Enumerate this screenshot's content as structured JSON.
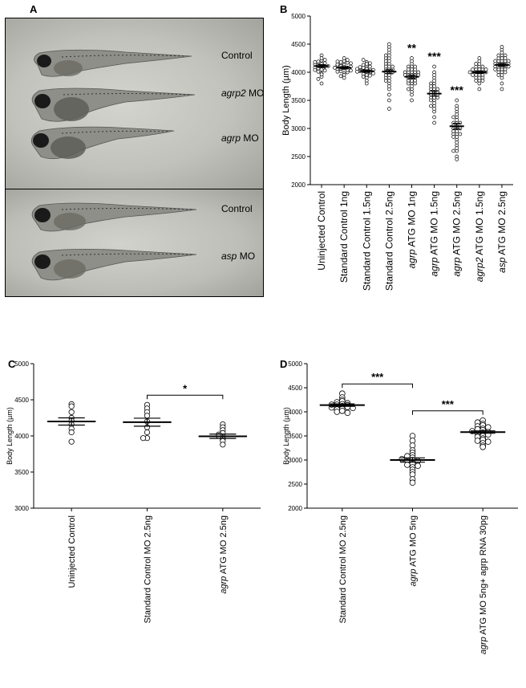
{
  "panel_labels": {
    "A": "A",
    "B": "B",
    "C": "C",
    "D": "D"
  },
  "photo": {
    "labels_top": [
      {
        "italic": "",
        "text": "Control"
      },
      {
        "italic": "agrp2",
        "text": " MO"
      },
      {
        "italic": "agrp",
        "text": " MO"
      }
    ],
    "labels_bottom": [
      {
        "italic": "",
        "text": "Control"
      },
      {
        "italic": "asp",
        "text": " MO"
      }
    ]
  },
  "chart_data": [
    {
      "panel": "B",
      "type": "scatter",
      "ylabel": "Body Length (µm)",
      "ylim": [
        2000,
        5000
      ],
      "yticks": [
        2000,
        2500,
        3000,
        3500,
        4000,
        4500,
        5000
      ],
      "categories": [
        {
          "italic": "",
          "text": "Uninjected Control"
        },
        {
          "italic": "",
          "text": "Standard Control 1ng"
        },
        {
          "italic": "",
          "text": "Standard Control 1.5ng"
        },
        {
          "italic": "",
          "text": "Standard Control 2.5ng"
        },
        {
          "italic": "agrp",
          "text": " ATG MO 1ng"
        },
        {
          "italic": "agrp",
          "text": " ATG MO 1.5ng"
        },
        {
          "italic": "agrp",
          "text": " ATG MO 2.5ng"
        },
        {
          "italic": "agrp2",
          "text": " ATG MO 1.5ng"
        },
        {
          "italic": "asp",
          "text": " ATG MO 2.5ng"
        }
      ],
      "means": [
        4110,
        4080,
        4020,
        4010,
        3920,
        3620,
        3040,
        4000,
        4130
      ],
      "sem": [
        25,
        20,
        22,
        35,
        30,
        45,
        50,
        20,
        25
      ],
      "significance": [
        "",
        "",
        "",
        "",
        "**",
        "***",
        "***",
        "",
        ""
      ],
      "values": [
        [
          4120,
          4210,
          4050,
          3980,
          4150,
          4080,
          4300,
          3920,
          4010,
          4190,
          4070,
          4130,
          3880,
          4250,
          4100,
          4030,
          4160,
          3960,
          4220,
          4090,
          4140,
          3800,
          4040,
          4180,
          4110
        ],
        [
          4130,
          4070,
          4200,
          3980,
          4020,
          4150,
          4090,
          4250,
          3950,
          4110,
          4060,
          4180,
          4000,
          4080,
          4120,
          3900,
          4170,
          4040,
          4100,
          4220,
          4050,
          3930,
          4140,
          4010,
          4190,
          4030,
          4080,
          4160
        ],
        [
          4060,
          3990,
          4120,
          3950,
          4030,
          4180,
          3900,
          4080,
          4010,
          4150,
          3970,
          4050,
          4220,
          3850,
          4100,
          4000,
          4070,
          3940,
          4130,
          4020,
          3980,
          4090,
          3800,
          4040,
          4160,
          3920,
          4060,
          4010
        ],
        [
          4050,
          4250,
          3900,
          4150,
          3800,
          4100,
          4350,
          3700,
          4000,
          4200,
          3950,
          4450,
          3600,
          4050,
          4300,
          3850,
          4150,
          4000,
          3500,
          4100,
          4250,
          3900,
          4050,
          4400,
          3750,
          4200,
          3950,
          4100,
          3350,
          4000,
          4300,
          4500,
          3850
        ],
        [
          4000,
          3800,
          4150,
          3700,
          3950,
          4100,
          3850,
          4050,
          3650,
          3900,
          4200,
          3750,
          4000,
          3600,
          3950,
          4100,
          3850,
          4000,
          3500,
          3900,
          4050,
          3800,
          4250,
          3950,
          3700,
          3900,
          4050,
          3850,
          4000,
          3950,
          4100,
          3800,
          3950,
          4000
        ],
        [
          3800,
          3500,
          4000,
          3300,
          3700,
          3900,
          3600,
          3400,
          3750,
          3550,
          3850,
          3200,
          3650,
          4100,
          3450,
          3600,
          3700,
          3350,
          3800,
          3550,
          3650,
          3950,
          3100,
          3600,
          3500,
          3750,
          3650,
          3400,
          3700,
          3550
        ],
        [
          3400,
          2800,
          3200,
          2600,
          3100,
          3500,
          2900,
          3000,
          2700,
          3300,
          2500,
          3050,
          2950,
          3150,
          2850,
          3250,
          2650,
          3000,
          2450,
          3100,
          2900,
          3350,
          2750,
          3050,
          2950,
          2850,
          3200,
          3000,
          2600,
          3100,
          2900
        ],
        [
          3950,
          4100,
          4050,
          3850,
          4000,
          4150,
          3900,
          4050,
          4000,
          4200,
          3800,
          3950,
          4100,
          4050,
          3900,
          4000,
          4250,
          3850,
          4000,
          4100,
          3950,
          4050,
          3900,
          3700,
          4000,
          4150,
          3950,
          4050,
          4000,
          3850
        ],
        [
          4150,
          4300,
          4050,
          4200,
          3900,
          4100,
          4400,
          4000,
          4250,
          3950,
          4150,
          4350,
          4050,
          4200,
          3800,
          4100,
          4250,
          4150,
          3700,
          4000,
          4200,
          4300,
          4100,
          4050,
          4450,
          3950,
          4150,
          4200,
          4100,
          4300,
          4000,
          4150,
          4050,
          4250,
          4100,
          4200
        ]
      ]
    },
    {
      "panel": "C",
      "type": "scatter",
      "ylabel": "Body Length (µm)",
      "ylim": [
        3000,
        5000
      ],
      "yticks": [
        3000,
        3500,
        4000,
        4500,
        5000
      ],
      "categories": [
        {
          "italic": "",
          "text": "Uninjected Control"
        },
        {
          "italic": "",
          "text": "Standard Control MO 2.5ng"
        },
        {
          "italic": "agrp",
          "text": " ATG MO 2.5ng"
        }
      ],
      "means": [
        4200,
        4190,
        3995
      ],
      "sem": [
        50,
        55,
        30
      ],
      "values": [
        [
          4440,
          4410,
          4330,
          4250,
          4210,
          4160,
          4100,
          4050,
          3920
        ],
        [
          4430,
          4380,
          4330,
          4280,
          4200,
          4120,
          4050,
          3970,
          3970
        ],
        [
          4160,
          4120,
          4080,
          4040,
          4020,
          3990,
          3960,
          3930,
          3880,
          4000
        ]
      ],
      "brackets": [
        {
          "from": 1,
          "to": 2,
          "label": "*"
        }
      ]
    },
    {
      "panel": "D",
      "type": "scatter",
      "ylabel": "Body Length (µm)",
      "ylim": [
        2000,
        5000
      ],
      "yticks": [
        2000,
        2500,
        3000,
        3500,
        4000,
        4500,
        5000
      ],
      "categories": [
        {
          "italic": "",
          "text": "Standard Control MO 2.5ng"
        },
        {
          "italic": "agrp",
          "text": " ATG MO 5ng"
        },
        {
          "italic": "agrp",
          "text": " ATG MO 5ng+ agrp RNA 30pg"
        }
      ],
      "means": [
        4140,
        3000,
        3580
      ],
      "sem": [
        25,
        45,
        25
      ],
      "values": [
        [
          4380,
          4300,
          4250,
          4220,
          4200,
          4180,
          4160,
          4150,
          4140,
          4120,
          4110,
          4100,
          4090,
          4080,
          4060,
          4050,
          4020,
          4000,
          3980,
          4150
        ],
        [
          3500,
          3400,
          3300,
          3200,
          3150,
          3100,
          3050,
          3000,
          3000,
          2980,
          2950,
          2920,
          2900,
          2880,
          2850,
          2800,
          2750,
          2700,
          2600,
          2530,
          3080,
          3020
        ],
        [
          3820,
          3780,
          3750,
          3720,
          3700,
          3680,
          3650,
          3620,
          3600,
          3580,
          3570,
          3550,
          3530,
          3500,
          3480,
          3450,
          3420,
          3400,
          3380,
          3350,
          3300,
          3270,
          3600,
          3640
        ]
      ],
      "brackets": [
        {
          "from": 0,
          "to": 1,
          "label": "***"
        },
        {
          "from": 1,
          "to": 2,
          "label": "***"
        }
      ]
    }
  ]
}
